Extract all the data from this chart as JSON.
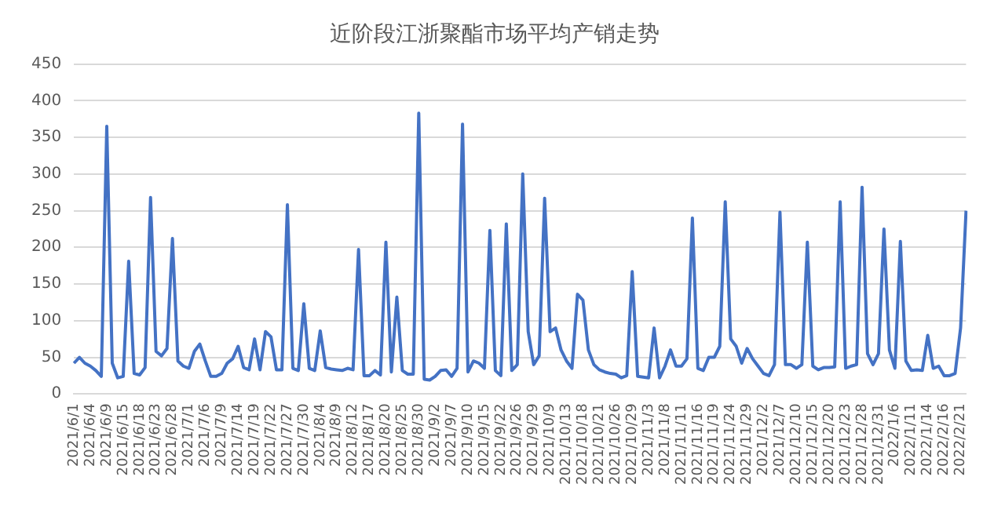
{
  "chart_data": {
    "type": "line",
    "title": "近阶段江浙聚酯市场平均产销走势",
    "categories": [
      "2021/6/1",
      null,
      null,
      "2021/6/4",
      null,
      null,
      "2021/6/9",
      null,
      null,
      "2021/6/15",
      null,
      null,
      "2021/6/18",
      null,
      null,
      "2021/6/23",
      null,
      null,
      "2021/6/28",
      null,
      null,
      "2021/7/1",
      null,
      null,
      "2021/7/6",
      null,
      null,
      "2021/7/9",
      null,
      null,
      "2021/7/14",
      null,
      null,
      "2021/7/19",
      null,
      null,
      "2021/7/22",
      null,
      null,
      "2021/7/27",
      null,
      null,
      "2021/7/30",
      null,
      null,
      "2021/8/4",
      null,
      null,
      "2021/8/9",
      null,
      null,
      "2021/8/12",
      null,
      null,
      "2021/8/17",
      null,
      null,
      "2021/8/20",
      null,
      null,
      "2021/8/25",
      null,
      null,
      "2021/8/30",
      null,
      null,
      "2021/9/2",
      null,
      null,
      "2021/9/7",
      null,
      null,
      "2021/9/10",
      null,
      null,
      "2021/9/15",
      null,
      null,
      "2021/9/22",
      null,
      null,
      "2021/9/26",
      null,
      null,
      "2021/9/29",
      null,
      null,
      "2021/10/9",
      null,
      null,
      "2021/10/13",
      null,
      null,
      "2021/10/18",
      null,
      null,
      "2021/10/21",
      null,
      null,
      "2021/10/26",
      null,
      null,
      "2021/10/29",
      null,
      null,
      "2021/11/3",
      null,
      null,
      "2021/11/8",
      null,
      null,
      "2021/11/11",
      null,
      null,
      "2021/11/16",
      null,
      null,
      "2021/11/19",
      null,
      null,
      "2021/11/24",
      null,
      null,
      "2021/11/29",
      null,
      null,
      "2021/12/2",
      null,
      null,
      "2021/12/7",
      null,
      null,
      "2021/12/10",
      null,
      null,
      "2021/12/15",
      null,
      null,
      "2021/12/20",
      null,
      null,
      "2021/12/23",
      null,
      null,
      "2021/12/28",
      null,
      null,
      "2021/12/31",
      null,
      null,
      "2022/1/6",
      null,
      null,
      "2022/1/11",
      null,
      null,
      "2022/1/14",
      null,
      null,
      "2022/2/16",
      null,
      null,
      "2022/2/21",
      null
    ],
    "series": [
      {
        "color": "#4472c4",
        "values": [
          42,
          50,
          42,
          38,
          32,
          24,
          365,
          42,
          22,
          24,
          181,
          28,
          26,
          36,
          268,
          58,
          52,
          62,
          212,
          45,
          38,
          35,
          58,
          68,
          45,
          24,
          24,
          28,
          42,
          48,
          65,
          36,
          33,
          75,
          33,
          85,
          78,
          33,
          33,
          258,
          35,
          32,
          123,
          35,
          32,
          86,
          36,
          34,
          33,
          32,
          35,
          33,
          197,
          25,
          25,
          32,
          26,
          207,
          30,
          132,
          32,
          27,
          27,
          383,
          20,
          19,
          24,
          32,
          33,
          24,
          35,
          368,
          30,
          45,
          42,
          35,
          223,
          32,
          25,
          232,
          32,
          40,
          300,
          85,
          40,
          52,
          267,
          85,
          90,
          60,
          45,
          35,
          136,
          128,
          60,
          40,
          33,
          30,
          28,
          27,
          22,
          25,
          167,
          24,
          23,
          22,
          90,
          22,
          38,
          60,
          38,
          38,
          48,
          240,
          35,
          32,
          50,
          50,
          65,
          262,
          75,
          65,
          42,
          62,
          48,
          38,
          28,
          25,
          40,
          248,
          40,
          40,
          35,
          40,
          207,
          38,
          33,
          36,
          36,
          37,
          262,
          35,
          38,
          40,
          282,
          55,
          40,
          55,
          225,
          60,
          35,
          208,
          45,
          32,
          33,
          32,
          80,
          35,
          38,
          25,
          25,
          28,
          90,
          250
        ]
      }
    ],
    "ylim": [
      0,
      450
    ],
    "yticks": [
      0,
      50,
      100,
      150,
      200,
      250,
      300,
      350,
      400,
      450
    ],
    "grid": "y",
    "marker": "none",
    "legend": false
  }
}
